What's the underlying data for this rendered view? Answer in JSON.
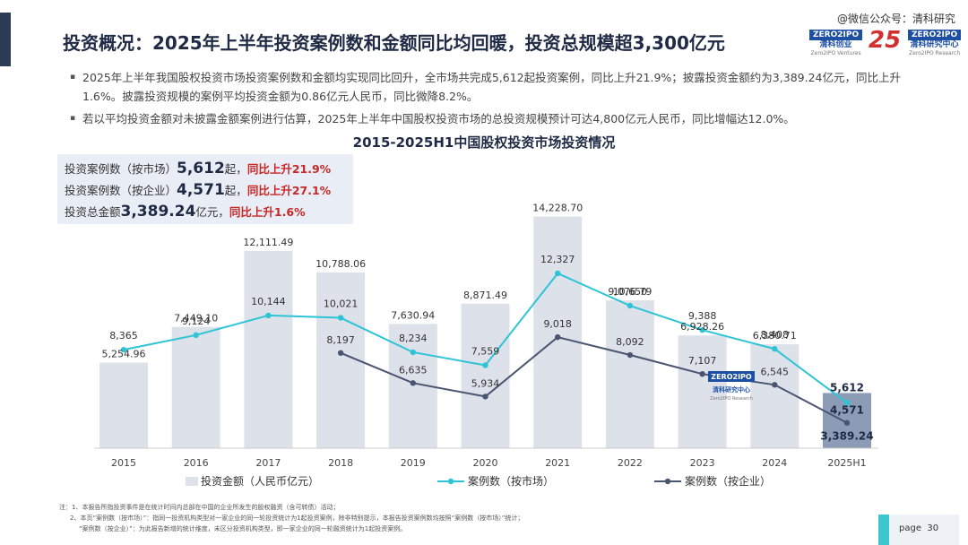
{
  "header": {
    "title": "投资概况：2025年上半年投资案例数和金额同比均回暖，投资总规模超3,300亿元",
    "watermark": "@微信公众号：清科研究",
    "logo1": {
      "badge": "ZERO2IPO",
      "cn": "清科创业",
      "en": "Zero2IPO Ventures"
    },
    "logo2": {
      "text": "25"
    },
    "logo3": {
      "badge": "ZERO2IPO",
      "cn": "清科研究中心",
      "en": "Zero2IPO Research"
    }
  },
  "bullets": [
    "2025年上半年我国股权投资市场投资案例数和金额均实现同比回升，全市场共完成5,612起投资案例，同比上升21.9%；披露投资金额约为3,389.24亿元，同比上升1.6%。披露投资规模的案例平均投资金额为0.86亿元人民币，同比微降8.2%。",
    "若以平均投资金额对未披露金额案例进行估算，2025年上半年中国股权投资市场的总投资规模预计可达4,800亿元人民币，同比增幅达12.0%。"
  ],
  "kpis": [
    {
      "label": "投资案例数（按市场）",
      "value": "5,612",
      "unit": "起，",
      "change": "同比上升21.9%"
    },
    {
      "label": "投资案例数（按企业）",
      "value": "4,571",
      "unit": "起，",
      "change": "同比上升27.1%"
    },
    {
      "label": "投资总金额",
      "value": "3,389.24",
      "unit": "亿元，",
      "change": "同比上升1.6%"
    }
  ],
  "chart_data": {
    "type": "bar",
    "title": "2015-2025H1中国股权投资市场投资情况",
    "categories": [
      "2015",
      "2016",
      "2017",
      "2018",
      "2019",
      "2020",
      "2021",
      "2022",
      "2023",
      "2024",
      "2025H1"
    ],
    "series": [
      {
        "name": "投资金额（人民币亿元）",
        "type": "bar",
        "values": [
          5254.96,
          7449.1,
          12111.49,
          10788.06,
          7630.94,
          8871.49,
          14228.7,
          9076.79,
          6928.26,
          6380.71,
          3389.24
        ],
        "labels": [
          "5,254.96",
          "7,449.10",
          "12,111.49",
          "10,788.06",
          "7,630.94",
          "8,871.49",
          "14,228.70",
          "9,076.79",
          "6,928.26",
          "6,380.71",
          "3,389.24"
        ]
      },
      {
        "name": "案例数（按市场）",
        "type": "line",
        "values": [
          8365,
          9124,
          10144,
          10021,
          8234,
          7559,
          12327,
          10650,
          9388,
          8408,
          5612
        ],
        "labels": [
          "8,365",
          "9,124",
          "10,144",
          "10,021",
          "8,234",
          "7,559",
          "12,327",
          "10,650",
          "9,388",
          "8,408",
          "5,612"
        ]
      },
      {
        "name": "案例数（按企业）",
        "type": "line",
        "values": [
          null,
          null,
          null,
          8197,
          6635,
          5934,
          9018,
          8092,
          7107,
          6545,
          4571
        ],
        "labels": [
          "",
          "",
          "",
          "8,197",
          "6,635",
          "5,934",
          "9,018",
          "8,092",
          "7,107",
          "6,545",
          "4,571"
        ]
      }
    ],
    "colors": {
      "bar": "#dde1ea",
      "bar_highlight": "#8c9cb7",
      "line_market": "#2ec4d6",
      "line_company": "#4a5570"
    },
    "legend": "bottom",
    "grid": false
  },
  "footnotes": [
    "注：1、本报告所指投资事件是在统计时间内总部在中国的企业所发生的股权融资（含可转债）活动；",
    "2、本页“案例数（按市场）”：指同一投资机构类型对一家企业的同一轮投资统计为1起投资案例，除非特别提示，本报告投资案例数均按照“案例数（按市场）”统计；",
    "“案例数（按企业）”：为此报告新增的统计维度，未区分投资机构类型，即一家企业的同一轮融资统计为1起投资案例。"
  ],
  "page": {
    "label": "page",
    "number": "30"
  }
}
